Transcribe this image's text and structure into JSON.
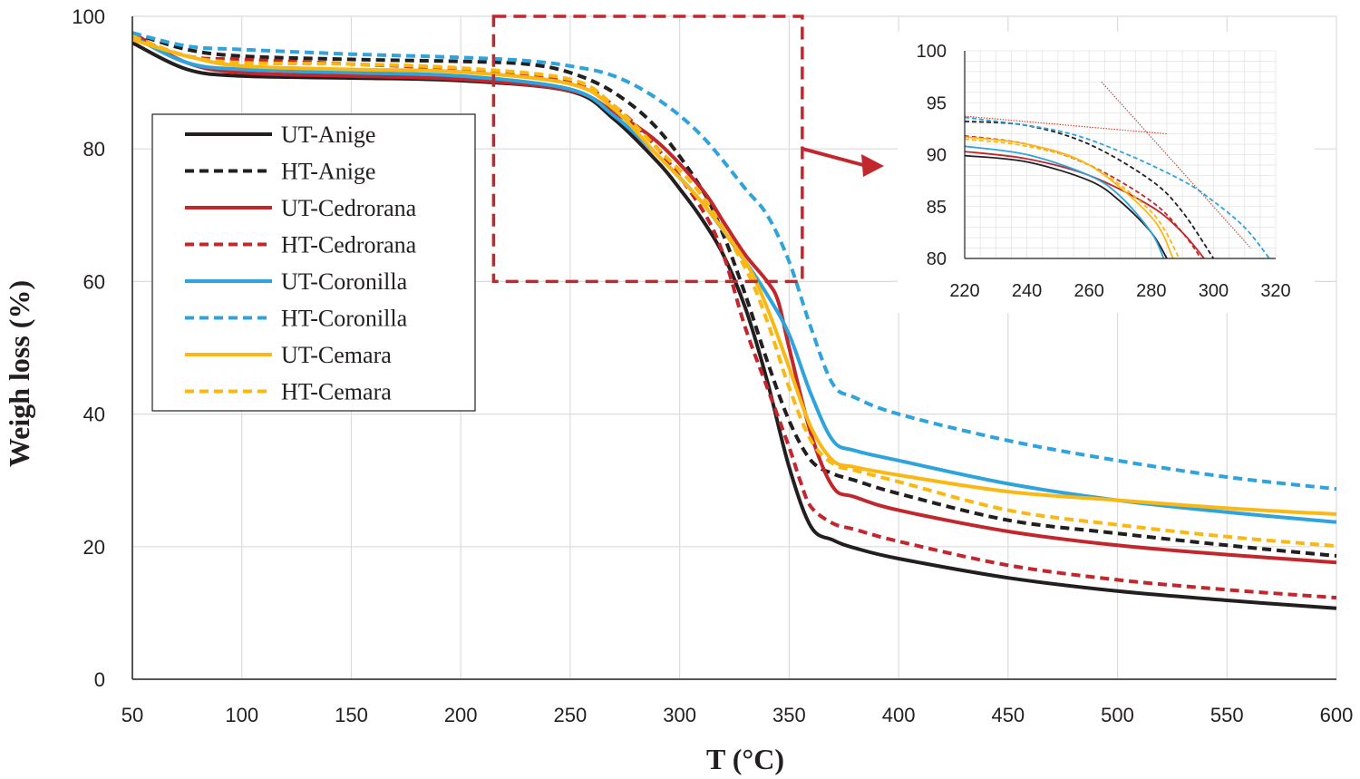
{
  "chart_data": [
    {
      "type": "line",
      "title": "",
      "xlabel": "T (°C)",
      "ylabel": "Weigh loss (%)",
      "xlim": [
        50,
        600
      ],
      "ylim": [
        0,
        100
      ],
      "xticks": [
        50,
        100,
        150,
        200,
        250,
        300,
        350,
        400,
        450,
        500,
        550,
        600
      ],
      "yticks": [
        0,
        20,
        40,
        60,
        80,
        100
      ],
      "grid": true,
      "legend_position": "left-middle",
      "series": [
        {
          "name": "UT-Anige",
          "color": "#231f20",
          "dash": "solid",
          "x": [
            50,
            75,
            100,
            150,
            200,
            250,
            270,
            290,
            300,
            310,
            320,
            330,
            340,
            350,
            360,
            370,
            380,
            400,
            450,
            500,
            550,
            600
          ],
          "y": [
            96,
            92,
            91,
            90.7,
            90.3,
            88.7,
            84.5,
            78,
            74,
            69.5,
            64,
            56,
            45,
            32,
            23,
            21,
            19.8,
            18.2,
            15.3,
            13.3,
            11.9,
            10.7
          ]
        },
        {
          "name": "HT-Anige",
          "color": "#231f20",
          "dash": "dashed",
          "x": [
            50,
            75,
            100,
            150,
            200,
            230,
            250,
            270,
            290,
            310,
            320,
            330,
            340,
            350,
            360,
            370,
            380,
            400,
            450,
            500,
            550,
            600
          ],
          "y": [
            97.5,
            95,
            94,
            93.5,
            93.2,
            92.8,
            91.5,
            88.5,
            83,
            74,
            67,
            58,
            48,
            39,
            33,
            31,
            30,
            28,
            24,
            22,
            20.2,
            18.6
          ]
        },
        {
          "name": "UT-Cedrorana",
          "color": "#c1272d",
          "dash": "solid",
          "x": [
            50,
            75,
            100,
            150,
            200,
            250,
            270,
            290,
            310,
            320,
            330,
            340,
            345,
            350,
            360,
            370,
            380,
            400,
            450,
            500,
            550,
            600
          ],
          "y": [
            97.5,
            93,
            91.5,
            91,
            90.5,
            88.8,
            85.5,
            81,
            74,
            69,
            64,
            60,
            57,
            50,
            37,
            29,
            27.5,
            25.5,
            22.3,
            20.2,
            18.8,
            17.6
          ]
        },
        {
          "name": "HT-Cedrorana",
          "color": "#c1272d",
          "dash": "dashed",
          "x": [
            50,
            75,
            100,
            150,
            200,
            250,
            270,
            290,
            310,
            320,
            330,
            340,
            350,
            355,
            360,
            370,
            380,
            400,
            450,
            500,
            550,
            600
          ],
          "y": [
            97,
            94,
            93.5,
            92.8,
            92,
            90,
            86.5,
            80,
            71,
            64,
            53,
            44,
            35,
            30,
            26,
            23.5,
            22.6,
            20.8,
            17.2,
            15,
            13.5,
            12.3
          ]
        },
        {
          "name": "UT-Coronilla",
          "color": "#2ea3dc",
          "dash": "solid",
          "x": [
            50,
            75,
            100,
            150,
            200,
            250,
            270,
            290,
            310,
            330,
            340,
            350,
            360,
            370,
            380,
            400,
            450,
            500,
            550,
            600
          ],
          "y": [
            97,
            93,
            92,
            91.5,
            91,
            89,
            85,
            79,
            72,
            63,
            58,
            52,
            43,
            36,
            34.5,
            33,
            29.5,
            27,
            25.2,
            23.7
          ]
        },
        {
          "name": "HT-Coronilla",
          "color": "#2ea3dc",
          "dash": "dashed",
          "x": [
            50,
            75,
            100,
            150,
            200,
            230,
            250,
            270,
            290,
            310,
            330,
            340,
            350,
            360,
            370,
            380,
            400,
            450,
            500,
            550,
            600
          ],
          "y": [
            97.5,
            95.5,
            95,
            94.3,
            93.8,
            93.3,
            92.5,
            91,
            87.5,
            82,
            74,
            70,
            63,
            53,
            44.5,
            42.5,
            40,
            36,
            33,
            30.5,
            28.7
          ]
        },
        {
          "name": "UT-Cemara",
          "color": "#f9b814",
          "dash": "solid",
          "x": [
            50,
            75,
            100,
            150,
            200,
            250,
            270,
            290,
            310,
            330,
            340,
            350,
            360,
            370,
            380,
            400,
            450,
            500,
            550,
            600
          ],
          "y": [
            96.5,
            94,
            92.5,
            92,
            91.6,
            89.8,
            86,
            79,
            72,
            63,
            56,
            47,
            38,
            33,
            32,
            30.8,
            28.3,
            27,
            25.8,
            24.9
          ]
        },
        {
          "name": "HT-Cemara",
          "color": "#f9b814",
          "dash": "dashed",
          "x": [
            50,
            75,
            100,
            150,
            200,
            250,
            270,
            290,
            310,
            330,
            340,
            350,
            360,
            370,
            380,
            400,
            450,
            500,
            550,
            600
          ],
          "y": [
            97,
            94,
            93,
            92.8,
            92.2,
            90.5,
            86.5,
            80,
            73,
            62,
            54,
            44,
            36,
            32.5,
            31.5,
            29.8,
            25.5,
            23.3,
            21.5,
            20.1
          ]
        }
      ],
      "zoom_box": {
        "x": [
          215,
          356
        ],
        "y": [
          60,
          100
        ],
        "color": "#c1272d"
      }
    },
    {
      "type": "line",
      "title": "",
      "xlabel": "",
      "ylabel": "",
      "xlim": [
        220,
        320
      ],
      "ylim": [
        80,
        100
      ],
      "xticks": [
        220,
        240,
        260,
        280,
        300,
        320
      ],
      "yticks": [
        80,
        85,
        90,
        95,
        100
      ],
      "grid": true,
      "series": [
        {
          "name": "UT-Anige",
          "color": "#231f20",
          "dash": "solid",
          "x": [
            220,
            240,
            260,
            270,
            280,
            285
          ],
          "y": [
            89.9,
            89.3,
            87.5,
            85.5,
            82.5,
            80
          ]
        },
        {
          "name": "HT-Anige",
          "color": "#231f20",
          "dash": "dashed",
          "x": [
            220,
            240,
            260,
            280,
            290,
            300
          ],
          "y": [
            93.2,
            92.8,
            91,
            87.5,
            84.5,
            80
          ]
        },
        {
          "name": "UT-Cedrorana",
          "color": "#c1272d",
          "dash": "solid",
          "x": [
            220,
            240,
            260,
            280,
            290,
            297
          ],
          "y": [
            90.3,
            89.6,
            88,
            85,
            82.5,
            80
          ]
        },
        {
          "name": "HT-Cedrorana",
          "color": "#c1272d",
          "dash": "dashed",
          "x": [
            220,
            240,
            260,
            280,
            290,
            296
          ],
          "y": [
            91.8,
            91,
            89,
            85.5,
            82.5,
            80
          ]
        },
        {
          "name": "UT-Coronilla",
          "color": "#2ea3dc",
          "dash": "solid",
          "x": [
            220,
            240,
            260,
            270,
            280,
            284
          ],
          "y": [
            90.8,
            90,
            88,
            86,
            82.5,
            80
          ]
        },
        {
          "name": "HT-Coronilla",
          "color": "#2ea3dc",
          "dash": "dashed",
          "x": [
            220,
            250,
            270,
            290,
            300,
            310,
            318
          ],
          "y": [
            93.6,
            92.3,
            90.3,
            87.5,
            85.5,
            83,
            80
          ]
        },
        {
          "name": "UT-Cemara",
          "color": "#f9b814",
          "dash": "solid",
          "x": [
            220,
            240,
            260,
            280,
            287
          ],
          "y": [
            91.7,
            91,
            89,
            84,
            80
          ]
        },
        {
          "name": "HT-Cemara",
          "color": "#f9b814",
          "dash": "dashed",
          "x": [
            220,
            240,
            260,
            280,
            289
          ],
          "y": [
            91.5,
            90.8,
            89,
            84.5,
            80
          ]
        },
        {
          "name": "Onset tangent (baseline)",
          "color": "#e8432a",
          "dash": "dotted",
          "x": [
            220,
            285
          ],
          "y": [
            93.7,
            92
          ]
        },
        {
          "name": "Onset tangent (slope)",
          "color": "#e8432a",
          "dash": "dotted",
          "x": [
            264,
            312
          ],
          "y": [
            97,
            81
          ]
        }
      ]
    }
  ],
  "legend": [
    {
      "label": "UT-Anige",
      "color": "#231f20",
      "dash": "solid"
    },
    {
      "label": "HT-Anige",
      "color": "#231f20",
      "dash": "dashed"
    },
    {
      "label": "UT-Cedrorana",
      "color": "#c1272d",
      "dash": "solid"
    },
    {
      "label": "HT-Cedrorana",
      "color": "#c1272d",
      "dash": "dashed"
    },
    {
      "label": "UT-Coronilla",
      "color": "#2ea3dc",
      "dash": "solid"
    },
    {
      "label": "HT-Coronilla",
      "color": "#2ea3dc",
      "dash": "dashed"
    },
    {
      "label": "UT-Cemara",
      "color": "#f9b814",
      "dash": "solid"
    },
    {
      "label": "HT-Cemara",
      "color": "#f9b814",
      "dash": "dashed"
    }
  ]
}
